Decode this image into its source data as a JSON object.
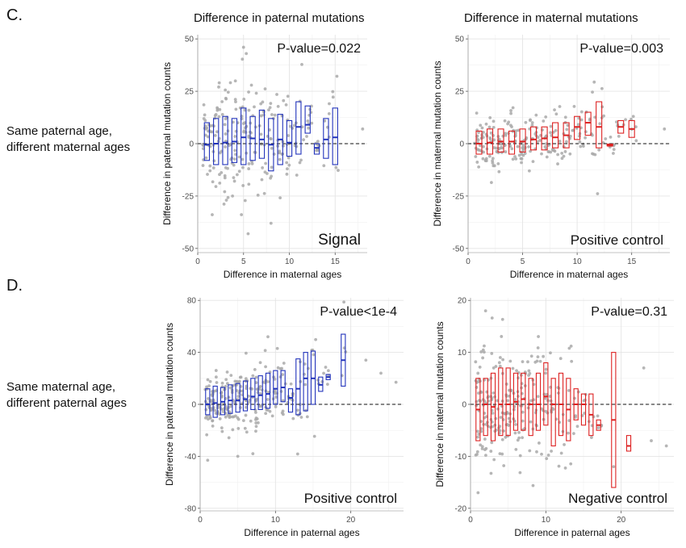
{
  "figure": {
    "section_c": "C.",
    "section_d": "D.",
    "col_title_left": "Difference in paternal mutations",
    "col_title_right": "Difference in maternal mutations",
    "row_label_top": [
      "Same paternal age,",
      "different maternal ages"
    ],
    "row_label_bottom": [
      "Same maternal age,",
      "different paternal ages"
    ]
  },
  "colors": {
    "blue": "#2233bb",
    "red": "#dd2222",
    "point": "#a9a9a9"
  },
  "chart_data": [
    {
      "type": "scatter",
      "panel": "C-left",
      "pvalue": "P-value=0.022",
      "label": "Signal",
      "color": "blue",
      "xlabel": "Difference in maternal ages",
      "ylabel": "Difference in paternal mutation counts",
      "xlim": [
        0,
        18.5
      ],
      "ylim": [
        -52,
        52
      ],
      "xticks": [
        0,
        5,
        10,
        15
      ],
      "yticks": [
        -50,
        -25,
        0,
        25,
        50
      ],
      "boxes": [
        {
          "x": 1,
          "q1": -8,
          "med": -0.5,
          "q3": 10
        },
        {
          "x": 2,
          "q1": -10,
          "med": 0,
          "q3": 12
        },
        {
          "x": 3,
          "q1": -10,
          "med": 0.5,
          "q3": 13
        },
        {
          "x": 4,
          "q1": -9,
          "med": 1,
          "q3": 12
        },
        {
          "x": 5,
          "q1": -10,
          "med": 3,
          "q3": 17
        },
        {
          "x": 6,
          "q1": -8,
          "med": 2.5,
          "q3": 13
        },
        {
          "x": 7,
          "q1": -7,
          "med": 2,
          "q3": 16
        },
        {
          "x": 8,
          "q1": -13,
          "med": -0.5,
          "q3": 12
        },
        {
          "x": 9,
          "q1": -10,
          "med": 2,
          "q3": 14
        },
        {
          "x": 10,
          "q1": -6,
          "med": 0.5,
          "q3": 11
        },
        {
          "x": 11,
          "q1": -5,
          "med": 8,
          "q3": 20
        },
        {
          "x": 12,
          "q1": 5,
          "med": 9,
          "q3": 18
        },
        {
          "x": 13,
          "q1": -5,
          "med": -2,
          "q3": 0
        },
        {
          "x": 14,
          "q1": -7,
          "med": 2,
          "q3": 12
        },
        {
          "x": 15,
          "q1": -10,
          "med": 3,
          "q3": 17
        }
      ],
      "scatter_max_x": 18,
      "extra_points": [
        [
          18,
          7
        ],
        [
          5,
          46
        ],
        [
          5.3,
          43
        ],
        [
          5.5,
          -43
        ],
        [
          8,
          -38
        ]
      ]
    },
    {
      "type": "scatter",
      "panel": "C-right",
      "pvalue": "P-value=0.003",
      "label": "Positive control",
      "color": "red",
      "xlabel": "Difference in maternal ages",
      "ylabel": "Difference in maternal mutation counts",
      "xlim": [
        0,
        18.5
      ],
      "ylim": [
        -52,
        52
      ],
      "xticks": [
        0,
        5,
        10,
        15
      ],
      "yticks": [
        -50,
        -25,
        0,
        25,
        50
      ],
      "boxes": [
        {
          "x": 1,
          "q1": -5,
          "med": 0,
          "q3": 6
        },
        {
          "x": 2,
          "q1": -5,
          "med": 0.5,
          "q3": 7
        },
        {
          "x": 3,
          "q1": -4,
          "med": 1,
          "q3": 7
        },
        {
          "x": 4,
          "q1": -5,
          "med": 1,
          "q3": 6
        },
        {
          "x": 5,
          "q1": -4,
          "med": 1,
          "q3": 7
        },
        {
          "x": 6,
          "q1": -3,
          "med": 2,
          "q3": 8
        },
        {
          "x": 7,
          "q1": -3,
          "med": 2.5,
          "q3": 8
        },
        {
          "x": 8,
          "q1": -2,
          "med": 3,
          "q3": 10
        },
        {
          "x": 9,
          "q1": -2,
          "med": 4,
          "q3": 10
        },
        {
          "x": 10,
          "q1": 2,
          "med": 8,
          "q3": 13
        },
        {
          "x": 11,
          "q1": 4,
          "med": 10,
          "q3": 15
        },
        {
          "x": 12,
          "q1": -2,
          "med": 8,
          "q3": 20
        },
        {
          "x": 13,
          "q1": -1,
          "med": -1,
          "q3": -0.2
        },
        {
          "x": 14,
          "q1": 5,
          "med": 8,
          "q3": 11
        },
        {
          "x": 15,
          "q1": 3,
          "med": 7,
          "q3": 11
        }
      ],
      "scatter_max_x": 18,
      "extra_points": [
        [
          18,
          7
        ],
        [
          11.5,
          -5
        ],
        [
          12,
          -3
        ]
      ]
    },
    {
      "type": "scatter",
      "panel": "D-left",
      "pvalue": "P-value<1e-4",
      "label": "Positive control",
      "color": "blue",
      "xlabel": "Difference in paternal ages",
      "ylabel": "Difference in paternal mutation counts",
      "xlim": [
        0,
        27
      ],
      "ylim": [
        -82,
        82
      ],
      "xticks": [
        0,
        10,
        20
      ],
      "yticks": [
        -80,
        -40,
        0,
        40,
        80
      ],
      "boxes": [
        {
          "x": 1,
          "q1": -8,
          "med": 0,
          "q3": 12
        },
        {
          "x": 2,
          "q1": -10,
          "med": 1,
          "q3": 14
        },
        {
          "x": 3,
          "q1": -8,
          "med": 2,
          "q3": 13
        },
        {
          "x": 4,
          "q1": -7,
          "med": 3,
          "q3": 15
        },
        {
          "x": 5,
          "q1": -6,
          "med": 3,
          "q3": 16
        },
        {
          "x": 6,
          "q1": -5,
          "med": 4,
          "q3": 18
        },
        {
          "x": 7,
          "q1": -4,
          "med": 6,
          "q3": 20
        },
        {
          "x": 8,
          "q1": -4,
          "med": 7,
          "q3": 22
        },
        {
          "x": 9,
          "q1": -3,
          "med": 8,
          "q3": 24
        },
        {
          "x": 10,
          "q1": 0,
          "med": 12,
          "q3": 26
        },
        {
          "x": 11,
          "q1": 2,
          "med": 13,
          "q3": 26
        },
        {
          "x": 12,
          "q1": -6,
          "med": 5,
          "q3": 12
        },
        {
          "x": 13,
          "q1": -8,
          "med": 12,
          "q3": 35
        },
        {
          "x": 14,
          "q1": -5,
          "med": 20,
          "q3": 40
        },
        {
          "x": 15,
          "q1": 0,
          "med": 20,
          "q3": 41
        },
        {
          "x": 16,
          "q1": 10,
          "med": 15,
          "q3": 21
        },
        {
          "x": 17,
          "q1": 19,
          "med": 21,
          "q3": 23
        },
        {
          "x": 19,
          "q1": 14,
          "med": 34,
          "q3": 54
        }
      ],
      "scatter_max_x": 19,
      "extra_points": [
        [
          22,
          34
        ],
        [
          24,
          24
        ],
        [
          26,
          17
        ],
        [
          9,
          52
        ],
        [
          7,
          -38
        ],
        [
          5,
          -40
        ],
        [
          1,
          -43
        ]
      ]
    },
    {
      "type": "scatter",
      "panel": "D-right",
      "pvalue": "P-value=0.31",
      "label": "Negative control",
      "color": "red",
      "xlabel": "Difference in paternal ages",
      "ylabel": "Difference in maternal mutation counts",
      "xlim": [
        0,
        27
      ],
      "ylim": [
        -20.5,
        20.5
      ],
      "xticks": [
        0,
        10,
        20
      ],
      "yticks": [
        -20,
        -10,
        0,
        10,
        20
      ],
      "boxes": [
        {
          "x": 1,
          "q1": -7,
          "med": -1,
          "q3": 5
        },
        {
          "x": 2,
          "q1": -6,
          "med": 0,
          "q3": 5
        },
        {
          "x": 3,
          "q1": -7,
          "med": -0.5,
          "q3": 6
        },
        {
          "x": 4,
          "q1": -6,
          "med": 0,
          "q3": 7
        },
        {
          "x": 5,
          "q1": -6,
          "med": 0,
          "q3": 7
        },
        {
          "x": 6,
          "q1": -5,
          "med": 0.5,
          "q3": 6
        },
        {
          "x": 7,
          "q1": -5,
          "med": 1,
          "q3": 6
        },
        {
          "x": 8,
          "q1": -6,
          "med": 0,
          "q3": 5
        },
        {
          "x": 9,
          "q1": -5,
          "med": 0,
          "q3": 6
        },
        {
          "x": 10,
          "q1": -4,
          "med": 1.5,
          "q3": 8
        },
        {
          "x": 11,
          "q1": -8,
          "med": 0,
          "q3": 5
        },
        {
          "x": 12,
          "q1": -6,
          "med": 0,
          "q3": 6
        },
        {
          "x": 13,
          "q1": -7,
          "med": -1,
          "q3": 5
        },
        {
          "x": 14,
          "q1": -3,
          "med": 0,
          "q3": 3
        },
        {
          "x": 15,
          "q1": -4,
          "med": 0,
          "q3": 2
        },
        {
          "x": 16,
          "q1": -6,
          "med": -2,
          "q3": 2
        },
        {
          "x": 17,
          "q1": -5,
          "med": -4,
          "q3": -3
        },
        {
          "x": 19,
          "q1": -16,
          "med": -3,
          "q3": 10
        },
        {
          "x": 21,
          "q1": -9,
          "med": -8,
          "q3": -6
        }
      ],
      "scatter_max_x": 18,
      "extra_points": [
        [
          23,
          7
        ],
        [
          26,
          -8
        ],
        [
          24,
          -7
        ],
        [
          2,
          18
        ],
        [
          1,
          -17
        ],
        [
          19,
          -12
        ]
      ]
    }
  ]
}
